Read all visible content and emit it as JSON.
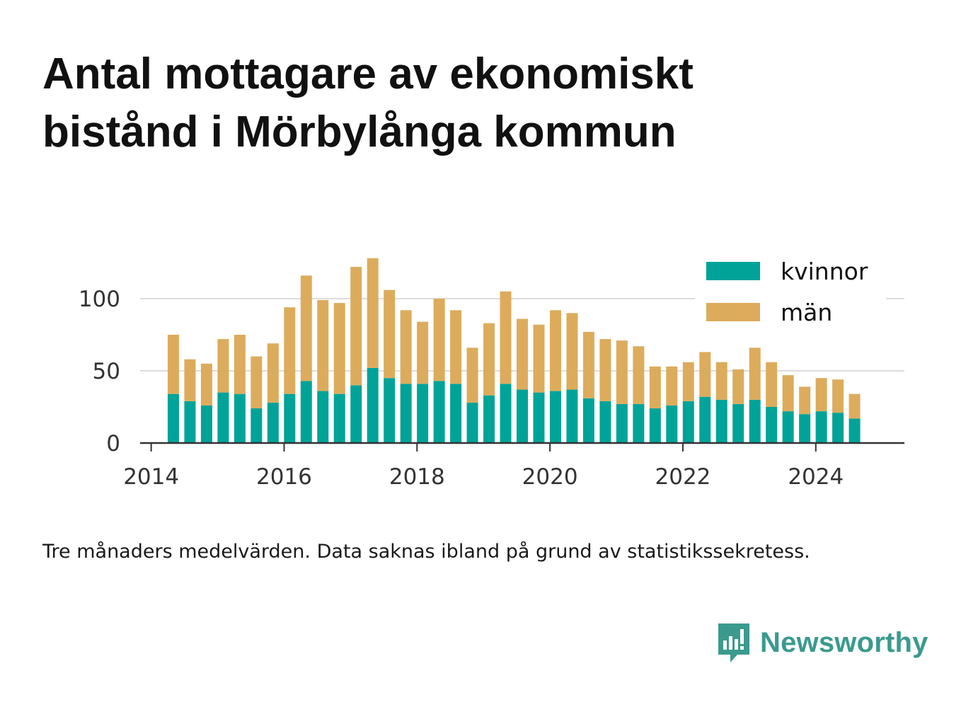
{
  "chart_data": {
    "type": "bar",
    "stacked": true,
    "title_lines": [
      "Antal mottagare av ekonomiskt",
      "bistånd i Mörbylånga kommun"
    ],
    "x_ticks": [
      "2014",
      "2016",
      "2018",
      "2020",
      "2022",
      "2024"
    ],
    "y_ticks": [
      "0",
      "50",
      "100"
    ],
    "ylim": [
      0,
      130
    ],
    "xlim": [
      "2013-11",
      "2025-05"
    ],
    "grid": true,
    "legend_position": "top-right",
    "x": [
      "2014-05",
      "2014-08",
      "2014-11",
      "2015-02",
      "2015-05",
      "2015-08",
      "2015-11",
      "2016-02",
      "2016-05",
      "2016-08",
      "2016-11",
      "2017-02",
      "2017-05",
      "2017-08",
      "2017-11",
      "2018-02",
      "2018-05",
      "2018-08",
      "2018-11",
      "2019-02",
      "2019-05",
      "2019-08",
      "2019-11",
      "2020-02",
      "2020-05",
      "2020-08",
      "2020-11",
      "2021-02",
      "2021-05",
      "2021-08",
      "2021-11",
      "2022-02",
      "2022-05",
      "2022-08",
      "2022-11",
      "2023-02",
      "2023-05",
      "2023-08",
      "2023-11",
      "2024-02",
      "2024-05",
      "2024-08"
    ],
    "series": [
      {
        "name": "kvinnor",
        "color": "#00a398",
        "values": [
          34,
          29,
          26,
          35,
          34,
          24,
          28,
          34,
          43,
          36,
          34,
          40,
          52,
          45,
          41,
          41,
          43,
          41,
          28,
          33,
          41,
          37,
          35,
          36,
          37,
          31,
          29,
          27,
          27,
          24,
          26,
          29,
          32,
          30,
          27,
          30,
          25,
          22,
          20,
          22,
          21,
          17
        ]
      },
      {
        "name": "män",
        "color": "#dcac5c",
        "values": [
          41,
          29,
          29,
          37,
          41,
          36,
          41,
          60,
          73,
          63,
          63,
          82,
          76,
          61,
          51,
          43,
          57,
          51,
          38,
          50,
          64,
          49,
          47,
          56,
          53,
          46,
          43,
          44,
          40,
          29,
          27,
          27,
          31,
          26,
          24,
          36,
          31,
          25,
          19,
          23,
          23,
          17
        ]
      }
    ],
    "footnote": "Tre månaders medelvärden. Data saknas ibland på grund av statistikssekretess."
  },
  "brand": {
    "name": "Newsworthy",
    "logo_icon": "newsworthy-chart-bubble-icon",
    "color": "#3a9a8e"
  },
  "colors": {
    "axis": "#333333",
    "grid": "#dddddd",
    "tick_text": "#333333"
  }
}
